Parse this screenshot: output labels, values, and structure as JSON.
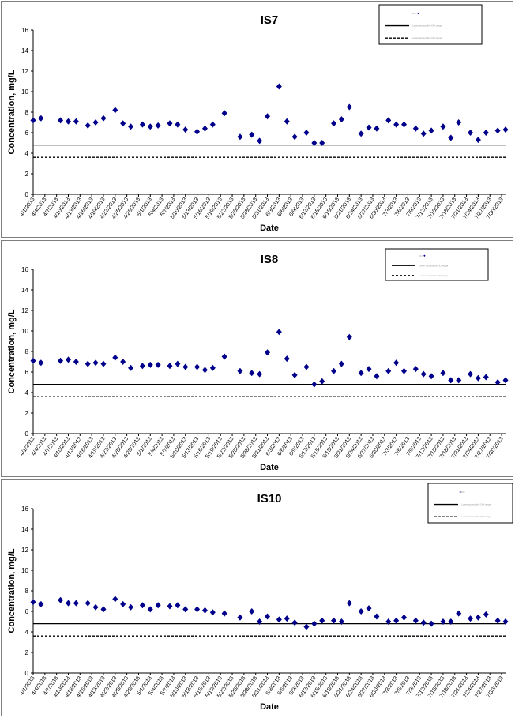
{
  "dates": [
    "4/1/2013",
    "4/4/2013",
    "4/7/2013",
    "4/10/2013",
    "4/13/2013",
    "4/16/2013",
    "4/19/2013",
    "4/22/2013",
    "4/25/2013",
    "4/28/2013",
    "5/1/2013",
    "5/4/2013",
    "5/7/2013",
    "5/10/2013",
    "5/13/2013",
    "5/16/2013",
    "5/19/2013",
    "5/22/2013",
    "5/25/2013",
    "5/28/2013",
    "5/31/2013",
    "6/3/2013",
    "6/6/2013",
    "6/9/2013",
    "6/12/2013",
    "6/15/2013",
    "6/18/2013",
    "6/21/2013",
    "6/24/2013",
    "6/27/2013",
    "6/30/2013",
    "7/3/2013",
    "7/6/2013",
    "7/9/2013",
    "7/12/2013",
    "7/15/2013",
    "7/18/2013",
    "7/21/2013",
    "7/24/2013",
    "7/27/2013",
    "7/30/2013"
  ],
  "colors": {
    "marker": "#00008b",
    "line": "#000000"
  },
  "chart_data": [
    {
      "type": "scatter",
      "title": "IS7",
      "xlabel": "Date",
      "ylabel": "Concentration, mg/L",
      "ylim": [
        0,
        16
      ],
      "yticks": [
        0,
        2,
        4,
        6,
        8,
        10,
        12,
        14,
        16
      ],
      "xlim": [
        "4/1/2013",
        "7/31/2013"
      ],
      "legend": [
        "DO",
        "Lower acceptable DO range",
        "Lower acceptable DO range"
      ],
      "legend_position": "top-right",
      "series": [
        {
          "marker": "diamond",
          "points": [
            [
              "4/1/2013",
              7.2
            ],
            [
              "4/3/2013",
              7.4
            ],
            [
              "4/8/2013",
              7.2
            ],
            [
              "4/10/2013",
              7.1
            ],
            [
              "4/12/2013",
              7.1
            ],
            [
              "4/15/2013",
              6.7
            ],
            [
              "4/17/2013",
              7.0
            ],
            [
              "4/19/2013",
              7.4
            ],
            [
              "4/22/2013",
              8.2
            ],
            [
              "4/24/2013",
              6.9
            ],
            [
              "4/26/2013",
              6.6
            ],
            [
              "4/29/2013",
              6.8
            ],
            [
              "5/1/2013",
              6.6
            ],
            [
              "5/3/2013",
              6.7
            ],
            [
              "5/6/2013",
              6.9
            ],
            [
              "5/8/2013",
              6.8
            ],
            [
              "5/10/2013",
              6.3
            ],
            [
              "5/13/2013",
              6.1
            ],
            [
              "5/15/2013",
              6.4
            ],
            [
              "5/17/2013",
              6.8
            ],
            [
              "5/20/2013",
              7.9
            ],
            [
              "5/24/2013",
              5.6
            ],
            [
              "5/27/2013",
              5.8
            ],
            [
              "5/29/2013",
              5.2
            ],
            [
              "5/31/2013",
              7.6
            ],
            [
              "6/3/2013",
              10.5
            ],
            [
              "6/5/2013",
              7.1
            ],
            [
              "6/7/2013",
              5.6
            ],
            [
              "6/10/2013",
              6.0
            ],
            [
              "6/12/2013",
              5.0
            ],
            [
              "6/14/2013",
              5.0
            ],
            [
              "6/17/2013",
              6.9
            ],
            [
              "6/19/2013",
              7.3
            ],
            [
              "6/21/2013",
              8.5
            ],
            [
              "6/24/2013",
              5.9
            ],
            [
              "6/26/2013",
              6.5
            ],
            [
              "6/28/2013",
              6.4
            ],
            [
              "7/1/2013",
              7.2
            ],
            [
              "7/3/2013",
              6.8
            ],
            [
              "7/5/2013",
              6.8
            ],
            [
              "7/8/2013",
              6.4
            ],
            [
              "7/10/2013",
              5.9
            ],
            [
              "7/12/2013",
              6.2
            ],
            [
              "7/15/2013",
              6.6
            ],
            [
              "7/17/2013",
              5.5
            ],
            [
              "7/19/2013",
              7.0
            ],
            [
              "7/22/2013",
              6.0
            ],
            [
              "7/24/2013",
              5.3
            ],
            [
              "7/26/2013",
              6.0
            ],
            [
              "7/29/2013",
              6.2
            ],
            [
              "7/31/2013",
              6.3
            ]
          ]
        }
      ],
      "reference_lines": [
        {
          "y": 4.8,
          "style": "solid"
        },
        {
          "y": 3.6,
          "style": "dashed"
        }
      ]
    },
    {
      "type": "scatter",
      "title": "IS8",
      "xlabel": "Date",
      "ylabel": "Concentration, mg/L",
      "ylim": [
        0,
        16
      ],
      "yticks": [
        0,
        2,
        4,
        6,
        8,
        10,
        12,
        14,
        16
      ],
      "xlim": [
        "4/1/2013",
        "7/31/2013"
      ],
      "legend": [
        "DO",
        "Lower acceptable DO range",
        "Lower acceptable DO range"
      ],
      "legend_position": "top-right",
      "series": [
        {
          "marker": "diamond",
          "points": [
            [
              "4/1/2013",
              7.1
            ],
            [
              "4/3/2013",
              6.9
            ],
            [
              "4/8/2013",
              7.1
            ],
            [
              "4/10/2013",
              7.2
            ],
            [
              "4/12/2013",
              7.0
            ],
            [
              "4/15/2013",
              6.8
            ],
            [
              "4/17/2013",
              6.9
            ],
            [
              "4/19/2013",
              6.8
            ],
            [
              "4/22/2013",
              7.4
            ],
            [
              "4/24/2013",
              7.0
            ],
            [
              "4/26/2013",
              6.4
            ],
            [
              "4/29/2013",
              6.6
            ],
            [
              "5/1/2013",
              6.7
            ],
            [
              "5/3/2013",
              6.7
            ],
            [
              "5/6/2013",
              6.6
            ],
            [
              "5/8/2013",
              6.8
            ],
            [
              "5/10/2013",
              6.5
            ],
            [
              "5/13/2013",
              6.5
            ],
            [
              "5/15/2013",
              6.2
            ],
            [
              "5/17/2013",
              6.4
            ],
            [
              "5/20/2013",
              7.5
            ],
            [
              "5/24/2013",
              6.1
            ],
            [
              "5/27/2013",
              5.9
            ],
            [
              "5/29/2013",
              5.8
            ],
            [
              "5/31/2013",
              7.9
            ],
            [
              "6/3/2013",
              9.9
            ],
            [
              "6/5/2013",
              7.3
            ],
            [
              "6/7/2013",
              5.7
            ],
            [
              "6/10/2013",
              6.5
            ],
            [
              "6/12/2013",
              4.8
            ],
            [
              "6/14/2013",
              5.1
            ],
            [
              "6/17/2013",
              6.1
            ],
            [
              "6/19/2013",
              6.8
            ],
            [
              "6/21/2013",
              9.4
            ],
            [
              "6/24/2013",
              5.9
            ],
            [
              "6/26/2013",
              6.3
            ],
            [
              "6/28/2013",
              5.6
            ],
            [
              "7/1/2013",
              6.1
            ],
            [
              "7/3/2013",
              6.9
            ],
            [
              "7/5/2013",
              6.1
            ],
            [
              "7/8/2013",
              6.3
            ],
            [
              "7/10/2013",
              5.8
            ],
            [
              "7/12/2013",
              5.6
            ],
            [
              "7/15/2013",
              5.9
            ],
            [
              "7/17/2013",
              5.2
            ],
            [
              "7/19/2013",
              5.2
            ],
            [
              "7/22/2013",
              5.8
            ],
            [
              "7/24/2013",
              5.4
            ],
            [
              "7/26/2013",
              5.5
            ],
            [
              "7/29/2013",
              5.0
            ],
            [
              "7/31/2013",
              5.2
            ]
          ]
        }
      ],
      "reference_lines": [
        {
          "y": 4.8,
          "style": "solid"
        },
        {
          "y": 3.6,
          "style": "dashed"
        }
      ]
    },
    {
      "type": "scatter",
      "title": "IS10",
      "xlabel": "Date",
      "ylabel": "Concentration, mg/L",
      "ylim": [
        0,
        16
      ],
      "yticks": [
        0,
        2,
        4,
        6,
        8,
        10,
        12,
        14,
        16
      ],
      "xlim": [
        "4/1/2013",
        "7/31/2013"
      ],
      "legend": [
        "DO",
        "Lower acceptable DO range",
        "Lower acceptable DO range"
      ],
      "legend_position": "top-right",
      "series": [
        {
          "marker": "diamond",
          "points": [
            [
              "4/1/2013",
              6.9
            ],
            [
              "4/3/2013",
              6.7
            ],
            [
              "4/8/2013",
              7.1
            ],
            [
              "4/10/2013",
              6.8
            ],
            [
              "4/12/2013",
              6.8
            ],
            [
              "4/15/2013",
              6.8
            ],
            [
              "4/17/2013",
              6.4
            ],
            [
              "4/19/2013",
              6.2
            ],
            [
              "4/22/2013",
              7.2
            ],
            [
              "4/24/2013",
              6.7
            ],
            [
              "4/26/2013",
              6.4
            ],
            [
              "4/29/2013",
              6.6
            ],
            [
              "5/1/2013",
              6.2
            ],
            [
              "5/3/2013",
              6.6
            ],
            [
              "5/6/2013",
              6.5
            ],
            [
              "5/8/2013",
              6.6
            ],
            [
              "5/10/2013",
              6.2
            ],
            [
              "5/13/2013",
              6.2
            ],
            [
              "5/15/2013",
              6.1
            ],
            [
              "5/17/2013",
              5.9
            ],
            [
              "5/20/2013",
              5.8
            ],
            [
              "5/24/2013",
              5.4
            ],
            [
              "5/27/2013",
              6.0
            ],
            [
              "5/29/2013",
              5.0
            ],
            [
              "5/31/2013",
              5.5
            ],
            [
              "6/3/2013",
              5.2
            ],
            [
              "6/5/2013",
              5.3
            ],
            [
              "6/7/2013",
              4.9
            ],
            [
              "6/10/2013",
              4.5
            ],
            [
              "6/12/2013",
              4.8
            ],
            [
              "6/14/2013",
              5.1
            ],
            [
              "6/17/2013",
              5.1
            ],
            [
              "6/19/2013",
              5.0
            ],
            [
              "6/21/2013",
              6.8
            ],
            [
              "6/24/2013",
              6.0
            ],
            [
              "6/26/2013",
              6.3
            ],
            [
              "6/28/2013",
              5.5
            ],
            [
              "7/1/2013",
              5.0
            ],
            [
              "7/3/2013",
              5.1
            ],
            [
              "7/5/2013",
              5.4
            ],
            [
              "7/8/2013",
              5.1
            ],
            [
              "7/10/2013",
              4.9
            ],
            [
              "7/12/2013",
              4.8
            ],
            [
              "7/15/2013",
              5.0
            ],
            [
              "7/17/2013",
              5.0
            ],
            [
              "7/19/2013",
              5.8
            ],
            [
              "7/22/2013",
              5.3
            ],
            [
              "7/24/2013",
              5.4
            ],
            [
              "7/26/2013",
              5.7
            ],
            [
              "7/29/2013",
              5.1
            ],
            [
              "7/31/2013",
              5.0
            ]
          ]
        }
      ],
      "reference_lines": [
        {
          "y": 4.8,
          "style": "solid"
        },
        {
          "y": 3.6,
          "style": "dashed"
        }
      ]
    }
  ]
}
